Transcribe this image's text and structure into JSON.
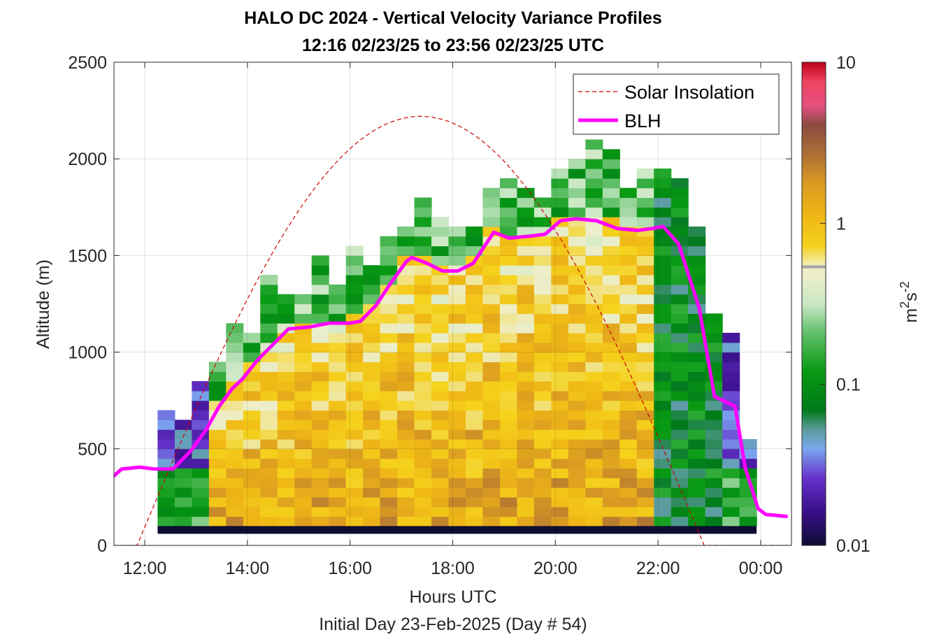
{
  "chart_data": {
    "type": "heatmap",
    "title": "HALO DC 2024 - Vertical Velocity Variance Profiles",
    "subtitle": "12:16 02/23/25 to 23:56 02/23/25  UTC",
    "xlabel": "Hours UTC",
    "footnote": "Initial Day 23-Feb-2025 (Day # 54)",
    "ylabel": "Altitude (m)",
    "xlim_hours": [
      11.4,
      24.6
    ],
    "ylim": [
      0,
      2500
    ],
    "x_ticks": [
      {
        "hour": 12,
        "label": "12:00"
      },
      {
        "hour": 14,
        "label": "14:00"
      },
      {
        "hour": 16,
        "label": "16:00"
      },
      {
        "hour": 18,
        "label": "18:00"
      },
      {
        "hour": 20,
        "label": "20:00"
      },
      {
        "hour": 22,
        "label": "22:00"
      },
      {
        "hour": 24,
        "label": "00:00"
      }
    ],
    "y_ticks": [
      0,
      500,
      1000,
      1500,
      2000,
      2500
    ],
    "grid": true,
    "legend_position": "top-right",
    "legend": [
      "Solar Insolation",
      "BLH"
    ],
    "colorbar": {
      "label_main": "m",
      "label_sup1": "2",
      "label_mid": "s",
      "label_sup2": "-2",
      "scale": "log",
      "range": [
        0.01,
        10
      ],
      "ticks": [
        "0.01",
        "0.1",
        "1",
        "10"
      ]
    },
    "series": [
      {
        "name": "BLH",
        "color": "#ff00ff",
        "x": [
          11.4,
          11.55,
          11.9,
          12.2,
          12.55,
          12.9,
          13.2,
          13.45,
          13.7,
          13.9,
          14.2,
          14.5,
          14.8,
          15.2,
          15.6,
          16.0,
          16.2,
          16.5,
          16.8,
          17.1,
          17.2,
          17.5,
          17.8,
          18.1,
          18.4,
          18.6,
          18.8,
          19.1,
          19.5,
          19.8,
          20.1,
          20.4,
          20.8,
          21.2,
          21.6,
          21.9,
          22.1,
          22.4,
          22.8,
          23.1,
          23.5,
          23.7,
          23.95,
          24.1,
          24.5
        ],
        "y": [
          360,
          395,
          405,
          395,
          395,
          490,
          600,
          720,
          810,
          860,
          960,
          1040,
          1120,
          1130,
          1150,
          1150,
          1160,
          1240,
          1360,
          1470,
          1490,
          1460,
          1420,
          1420,
          1460,
          1540,
          1620,
          1590,
          1600,
          1610,
          1680,
          1690,
          1680,
          1640,
          1630,
          1640,
          1650,
          1560,
          1230,
          770,
          720,
          400,
          190,
          160,
          150
        ]
      },
      {
        "name": "Solar Insolation",
        "color": "#cc0000",
        "style": "dashed",
        "sunrise_hour": 11.85,
        "sunset_hour": 22.9,
        "peak_hour": 17.37,
        "peak_altitude": 2220,
        "night_altitude": 0
      }
    ],
    "heatmap": {
      "x_start_hour": 12.25,
      "x_end_hour": 23.92,
      "columns": 35,
      "bin_height_m": 50,
      "z_unit": "m2 s-2",
      "z_range": [
        0.01,
        10
      ]
    }
  }
}
